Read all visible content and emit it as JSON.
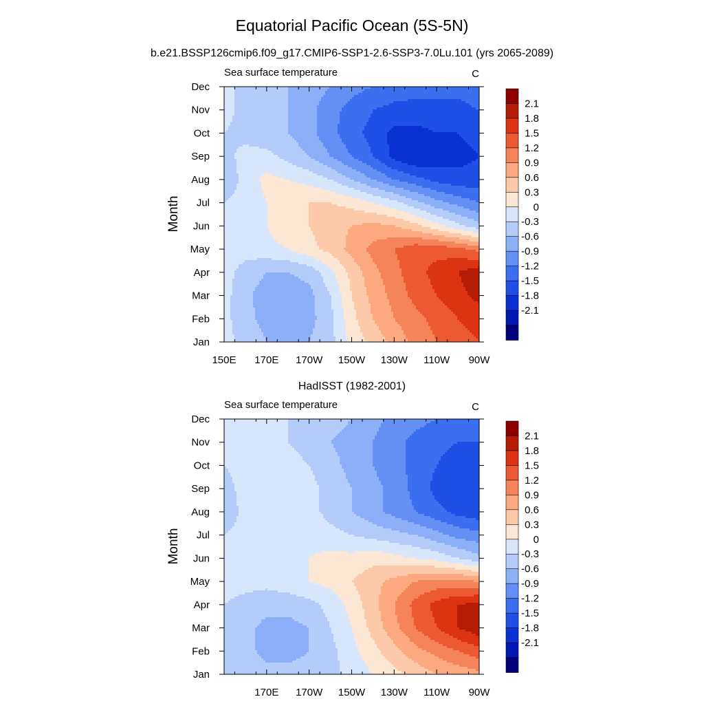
{
  "title": "Equatorial Pacific Ocean (5S-5N)",
  "subtitle": "b.e21.BSSP126cmip6.f09_g17.CMIP6-SSP1-2.6-SSP3-7.0Lu.101 (yrs 2065-2089)",
  "colors": [
    "#00007c",
    "#0018b4",
    "#0a32d2",
    "#1e50e6",
    "#3c6ef0",
    "#6490f5",
    "#8cb0f8",
    "#b4ccfa",
    "#d8e6fc",
    "#fce6d4",
    "#fccaa8",
    "#fca880",
    "#f6845a",
    "#ec5a34",
    "#dc3412",
    "#b41c06",
    "#8c0000"
  ],
  "chart_data": [
    {
      "type": "heatmap",
      "panel_title": "",
      "left_label": "Sea surface temperature",
      "right_label": "C",
      "ylabel": "Month",
      "xlabel": "",
      "x_ticks": [
        "150E",
        "170E",
        "170W",
        "150W",
        "130W",
        "110W",
        "90W"
      ],
      "y_ticks": [
        "Jan",
        "Feb",
        "Mar",
        "Apr",
        "May",
        "Jun",
        "Jul",
        "Aug",
        "Sep",
        "Oct",
        "Nov",
        "Dec"
      ],
      "x_range": [
        150,
        270
      ],
      "colorbar_labels": [
        "2.1",
        "1.8",
        "1.5",
        "1.2",
        "0.9",
        "0.6",
        "0.3",
        "0",
        "-0.3",
        "-0.6",
        "-0.9",
        "-1.2",
        "-1.5",
        "-1.8",
        "-2.1"
      ],
      "lon": [
        150,
        160,
        170,
        180,
        190,
        200,
        210,
        220,
        230,
        240,
        250,
        260,
        270
      ],
      "months": [
        "Jan",
        "Feb",
        "Mar",
        "Apr",
        "May",
        "Jun",
        "Jul",
        "Aug",
        "Sep",
        "Oct",
        "Nov",
        "Dec"
      ],
      "values": [
        [
          0.1,
          -0.1,
          -0.3,
          -0.3,
          -0.3,
          -0.1,
          0.4,
          0.7,
          1.0,
          1.3,
          1.5,
          1.7,
          1.8
        ],
        [
          0.1,
          -0.2,
          -0.4,
          -0.5,
          -0.4,
          -0.1,
          0.5,
          0.9,
          1.2,
          1.4,
          1.6,
          1.8,
          1.9
        ],
        [
          0.1,
          -0.2,
          -0.5,
          -0.5,
          -0.4,
          0.0,
          0.6,
          1.0,
          1.3,
          1.6,
          1.8,
          2.0,
          2.2
        ],
        [
          0.1,
          -0.1,
          -0.3,
          -0.3,
          -0.2,
          0.2,
          0.7,
          1.1,
          1.4,
          1.7,
          1.9,
          2.1,
          2.3
        ],
        [
          0.1,
          0.1,
          0.2,
          0.3,
          0.5,
          0.7,
          1.0,
          1.3,
          1.5,
          1.7,
          1.7,
          1.6,
          1.4
        ],
        [
          0.1,
          0.2,
          0.3,
          0.5,
          0.6,
          0.8,
          0.9,
          1.0,
          0.9,
          0.7,
          0.4,
          0.1,
          -0.2
        ],
        [
          0.0,
          0.1,
          0.3,
          0.5,
          0.6,
          0.6,
          0.5,
          0.3,
          0.1,
          -0.2,
          -0.5,
          -0.7,
          -0.9
        ],
        [
          -0.2,
          0.1,
          0.4,
          0.3,
          0.2,
          0.0,
          -0.3,
          -0.6,
          -0.9,
          -1.1,
          -1.3,
          -1.4,
          -1.4
        ],
        [
          -0.1,
          0.1,
          0.1,
          -0.1,
          -0.3,
          -0.6,
          -0.9,
          -1.2,
          -1.6,
          -1.8,
          -1.7,
          -1.6,
          -1.5
        ],
        [
          0.0,
          -0.1,
          -0.2,
          -0.3,
          -0.5,
          -0.8,
          -1.1,
          -1.3,
          -1.6,
          -1.6,
          -1.5,
          -1.5,
          -1.4
        ],
        [
          0.1,
          -0.1,
          -0.2,
          -0.3,
          -0.5,
          -0.8,
          -1.0,
          -1.2,
          -1.3,
          -1.3,
          -1.3,
          -1.3,
          -1.2
        ],
        [
          0.1,
          -0.1,
          -0.2,
          -0.3,
          -0.4,
          -0.6,
          -0.8,
          -0.9,
          -1.0,
          -1.1,
          -1.1,
          -1.1,
          -1.0
        ]
      ]
    },
    {
      "type": "heatmap",
      "panel_title": "HadISST (1982-2001)",
      "left_label": "Sea surface temperature",
      "right_label": "C",
      "ylabel": "Month",
      "xlabel": "",
      "x_ticks": [
        "",
        "170E",
        "170W",
        "150W",
        "130W",
        "110W",
        "90W"
      ],
      "y_ticks": [
        "Jan",
        "Feb",
        "Mar",
        "Apr",
        "May",
        "Jun",
        "Jul",
        "Aug",
        "Sep",
        "Oct",
        "Nov",
        "Dec"
      ],
      "x_range": [
        150,
        270
      ],
      "colorbar_labels": [
        "2.1",
        "1.8",
        "1.5",
        "1.2",
        "0.9",
        "0.6",
        "0.3",
        "0",
        "-0.3",
        "-0.6",
        "-0.9",
        "-1.2",
        "-1.5",
        "-1.8",
        "-2.1"
      ],
      "lon": [
        150,
        160,
        170,
        180,
        190,
        200,
        210,
        220,
        230,
        240,
        250,
        260,
        270
      ],
      "months": [
        "Jan",
        "Feb",
        "Mar",
        "Apr",
        "May",
        "Jun",
        "Jul",
        "Aug",
        "Sep",
        "Oct",
        "Nov",
        "Dec"
      ],
      "values": [
        [
          -0.1,
          -0.1,
          -0.2,
          -0.2,
          -0.2,
          -0.1,
          0.1,
          0.3,
          0.5,
          0.7,
          0.9,
          1.0,
          1.1
        ],
        [
          -0.1,
          -0.2,
          -0.4,
          -0.4,
          -0.3,
          -0.1,
          0.2,
          0.5,
          0.8,
          1.1,
          1.3,
          1.5,
          1.7
        ],
        [
          -0.1,
          -0.2,
          -0.4,
          -0.4,
          -0.3,
          0.0,
          0.3,
          0.7,
          1.1,
          1.5,
          1.8,
          2.1,
          2.3
        ],
        [
          0.0,
          -0.1,
          -0.2,
          -0.2,
          -0.1,
          0.1,
          0.4,
          0.8,
          1.2,
          1.6,
          1.9,
          2.1,
          2.2
        ],
        [
          0.1,
          0.1,
          0.1,
          0.2,
          0.3,
          0.4,
          0.6,
          0.8,
          1.0,
          1.2,
          1.3,
          1.3,
          1.2
        ],
        [
          0.1,
          0.2,
          0.2,
          0.3,
          0.3,
          0.4,
          0.4,
          0.5,
          0.4,
          0.3,
          0.2,
          0.0,
          -0.2
        ],
        [
          0.0,
          0.1,
          0.2,
          0.2,
          0.2,
          0.1,
          0.0,
          -0.1,
          -0.2,
          -0.3,
          -0.5,
          -0.7,
          -0.8
        ],
        [
          -0.2,
          0.1,
          0.2,
          0.2,
          0.1,
          -0.1,
          -0.3,
          -0.5,
          -0.7,
          -0.9,
          -1.1,
          -1.3,
          -1.4
        ],
        [
          -0.1,
          0.1,
          0.3,
          0.2,
          0.1,
          -0.1,
          -0.3,
          -0.5,
          -0.7,
          -1.0,
          -1.3,
          -1.5,
          -1.5
        ],
        [
          0.0,
          0.1,
          0.1,
          0.1,
          0.0,
          -0.2,
          -0.4,
          -0.6,
          -0.8,
          -1.0,
          -1.2,
          -1.4,
          -1.4
        ],
        [
          0.1,
          0.1,
          0.1,
          0.0,
          -0.1,
          -0.3,
          -0.4,
          -0.6,
          -0.8,
          -1.0,
          -1.1,
          -1.2,
          -1.2
        ],
        [
          0.1,
          0.1,
          0.0,
          0.0,
          -0.1,
          -0.2,
          -0.3,
          -0.5,
          -0.7,
          -0.8,
          -0.9,
          -1.0,
          -1.0
        ]
      ]
    }
  ]
}
